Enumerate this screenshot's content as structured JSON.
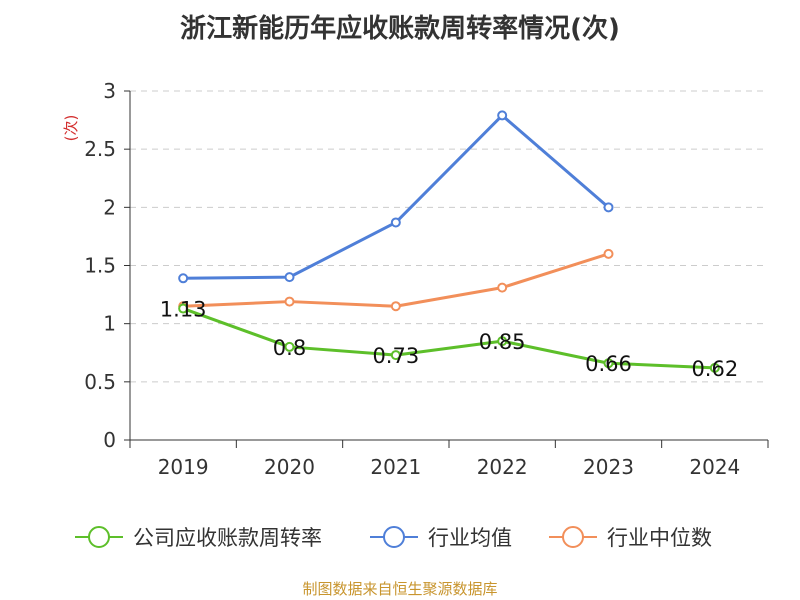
{
  "title": "浙江新能历年应收账款周转率情况(次)",
  "footer": "制图数据来自恒生聚源数据库",
  "colors": {
    "company": "#5dbf2a",
    "industry_avg": "#4f7fd8",
    "industry_median": "#f28f5a",
    "unit": "#d32f2f",
    "axis": "#333333",
    "grid": "#cccccc",
    "footer": "#c8952e"
  },
  "chart_data": {
    "type": "line",
    "categories": [
      "2019",
      "2020",
      "2021",
      "2022",
      "2023",
      "2024"
    ],
    "ylabel": "(次)",
    "ylim": [
      0,
      3
    ],
    "yticks": [
      "0",
      "0.5",
      "1",
      "1.5",
      "2",
      "2.5",
      "3"
    ],
    "grid": true,
    "legend_position": "bottom",
    "series": [
      {
        "name": "公司应收账款周转率",
        "values": [
          1.13,
          0.8,
          0.73,
          0.85,
          0.66,
          0.62
        ],
        "labels": [
          "1.13",
          "0.8",
          "0.73",
          "0.85",
          "0.66",
          "0.62"
        ]
      },
      {
        "name": "行业均值",
        "values": [
          1.39,
          1.4,
          1.87,
          2.79,
          2.0,
          null
        ]
      },
      {
        "name": "行业中位数",
        "values": [
          1.15,
          1.19,
          1.15,
          1.31,
          1.6,
          null
        ]
      }
    ]
  }
}
